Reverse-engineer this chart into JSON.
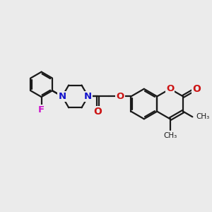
{
  "bg_color": "#ebebeb",
  "bond_color": "#1a1a1a",
  "N_color": "#1414cc",
  "O_color": "#cc1414",
  "F_color": "#cc14cc",
  "line_width": 1.6,
  "font_size": 9,
  "figsize": [
    3.0,
    3.0
  ],
  "dpi": 100,
  "xlim": [
    0,
    10
  ],
  "ylim": [
    0,
    10
  ]
}
